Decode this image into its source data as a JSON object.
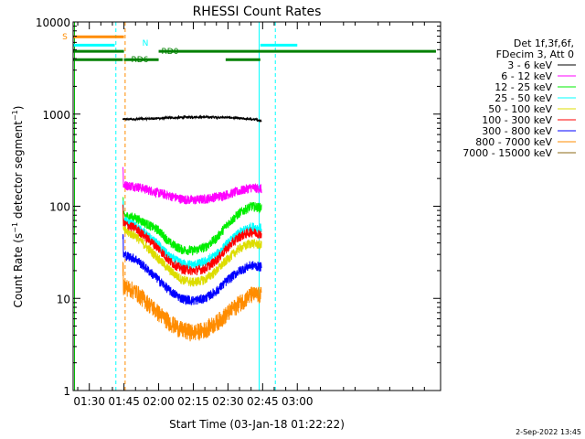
{
  "chart_data": {
    "type": "line",
    "title": "RHESSI Count Rates",
    "xlabel": "Start Time (03-Jan-18 01:22:22)",
    "ylabel": "Count Rate (s⁻¹ detector segment⁻¹)",
    "y_scale": "log",
    "ylim": [
      1,
      10000
    ],
    "xlim_minutes_after_01_00": [
      23,
      182
    ],
    "x_ticks": [
      {
        "label": "01:30",
        "t": 30
      },
      {
        "label": "01:45",
        "t": 45
      },
      {
        "label": "02:00",
        "t": 60
      },
      {
        "label": "02:15",
        "t": 75
      },
      {
        "label": "02:30",
        "t": 90
      },
      {
        "label": "02:45",
        "t": 105
      },
      {
        "label": "03:00",
        "t": 120
      }
    ],
    "y_ticks": [
      {
        "label": "1",
        "v": 1
      },
      {
        "label": "10",
        "v": 10
      },
      {
        "label": "100",
        "v": 100
      },
      {
        "label": "1000",
        "v": 1000
      },
      {
        "label": "10000",
        "v": 10000
      }
    ],
    "legend": {
      "placement": "right",
      "header": [
        "Det 1f,3f,6f,",
        "FDecim 3, Att 0"
      ]
    },
    "series": [
      {
        "name": "3 - 6 keV",
        "color": "#000000",
        "x": [
          44.5,
          48,
          60,
          75,
          90,
          102,
          104.5
        ],
        "values": [
          880,
          880,
          900,
          930,
          920,
          870,
          850
        ]
      },
      {
        "name": "6 - 12 keV",
        "color": "#ff00ff",
        "x": [
          44.5,
          50,
          60,
          70,
          75,
          80,
          90,
          100,
          104.5
        ],
        "values": [
          170,
          165,
          140,
          120,
          117,
          120,
          135,
          160,
          155
        ]
      },
      {
        "name": "12 - 25 keV",
        "color": "#00ee00",
        "x": [
          44.5,
          50,
          60,
          65,
          70,
          75,
          80,
          85,
          90,
          95,
          100,
          104.5
        ],
        "values": [
          80,
          75,
          55,
          40,
          34,
          33,
          36,
          45,
          65,
          85,
          100,
          97
        ]
      },
      {
        "name": "25 - 50 keV",
        "color": "#00ffff",
        "x": [
          44.5,
          50,
          60,
          65,
          70,
          75,
          80,
          85,
          90,
          95,
          100,
          104.5
        ],
        "values": [
          70,
          62,
          38,
          28,
          24,
          23,
          25,
          30,
          40,
          52,
          60,
          58
        ]
      },
      {
        "name": "50 - 100 keV",
        "color": "#dddd00",
        "x": [
          44.5,
          50,
          60,
          65,
          70,
          75,
          80,
          85,
          90,
          95,
          100,
          104.5
        ],
        "values": [
          55,
          48,
          27,
          20,
          16,
          15,
          16,
          20,
          27,
          35,
          40,
          38
        ]
      },
      {
        "name": "100 - 300 keV",
        "color": "#ff0000",
        "x": [
          44.5,
          50,
          60,
          65,
          70,
          75,
          80,
          85,
          90,
          95,
          100,
          104.5
        ],
        "values": [
          65,
          58,
          35,
          25,
          21,
          20,
          21,
          26,
          36,
          47,
          53,
          50
        ]
      },
      {
        "name": "300 - 800 keV",
        "color": "#0000ff",
        "x": [
          44.5,
          50,
          60,
          65,
          70,
          75,
          80,
          85,
          90,
          95,
          100,
          104.5
        ],
        "values": [
          30,
          27,
          16,
          12,
          10,
          9.5,
          10,
          12,
          16,
          20,
          23,
          22
        ]
      },
      {
        "name": "800 - 7000 keV",
        "color": "#ff8c00",
        "x": [
          44.5,
          50,
          60,
          65,
          70,
          75,
          80,
          85,
          90,
          95,
          100,
          104.5
        ],
        "values": [
          14,
          12,
          7,
          5.5,
          4.6,
          4.3,
          4.6,
          5.5,
          7,
          9,
          11,
          11
        ]
      },
      {
        "name": "7000 - 15000 keV",
        "color": "#8b6914",
        "x": [],
        "values": []
      }
    ],
    "status_bars": [
      {
        "label": "S",
        "color": "#ff8c00",
        "y": 6900,
        "segments": [
          [
            23,
            45
          ]
        ]
      },
      {
        "label": "N",
        "color": "#00ffff",
        "y": 5600,
        "segments": [
          [
            23,
            41
          ],
          [
            104,
            120
          ]
        ]
      },
      {
        "label": "RD0",
        "color": "#008000",
        "y": 4800,
        "segments": [
          [
            23,
            45
          ],
          [
            60,
            180
          ]
        ]
      },
      {
        "label": "RD6",
        "color": "#008000",
        "y": 3900,
        "segments": [
          [
            23,
            44.5
          ],
          [
            45,
            60
          ],
          [
            89,
            104
          ]
        ]
      }
    ],
    "vlines": [
      {
        "t": 41.5,
        "color": "#00ffff",
        "style": "dashed"
      },
      {
        "t": 45.5,
        "color": "#ff8c00",
        "style": "dashed"
      },
      {
        "t": 103.5,
        "color": "#00ffff",
        "style": "solid"
      },
      {
        "t": 110.5,
        "color": "#00ffff",
        "style": "dashed"
      },
      {
        "t": 23.6,
        "color": "#00bb00",
        "style": "solid"
      }
    ],
    "timestamp": "2-Sep-2022 13:45"
  }
}
